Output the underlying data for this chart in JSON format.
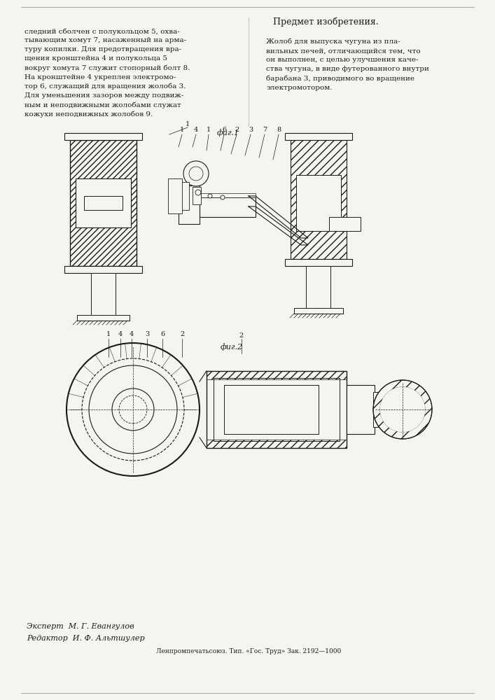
{
  "bg_color": "#f5f5f0",
  "text_color": "#1a1a1a",
  "title": "Жолоб для выпуска чугуна из пла-\nвильных печей, отличающийся тем, что\nон выполнен, с целью улучшения каче-\nства чугуна, в виде футерованного внутри\nбарабана 3, приводимого во вращение\nэлектромотором.",
  "left_col_text": "следний сболчен с полукольцом 5, охва-\nтывающим хомут 7, насаженный на арма-\nтуру копилки. Для предотвращения вра-\nщения кронштейна 4 и полукольца 5\nвокруг хомута 7 служит стопорный болт 8.\nНа кронштейне 4 укреплен электромо-\nтор 6, служащий для вращения жолоба 3.\nДля уменьшения зазоров между подвиж-\nным и неподвижными жолобами служат\nкожухи неподвижных жолобов 9.",
  "subject_header": "Предмет изобретения.",
  "fig1_label": "фиг.1",
  "fig2_label": "фиг.2",
  "expert_text": "Эксперт  М. Г. Евангулов",
  "editor_text": "Редактор  И. Ф. Альтшулер",
  "footer_text": "Ленпромпечатьсоюз. Тип. «Гос. Труд» Зак. 2192—1000"
}
